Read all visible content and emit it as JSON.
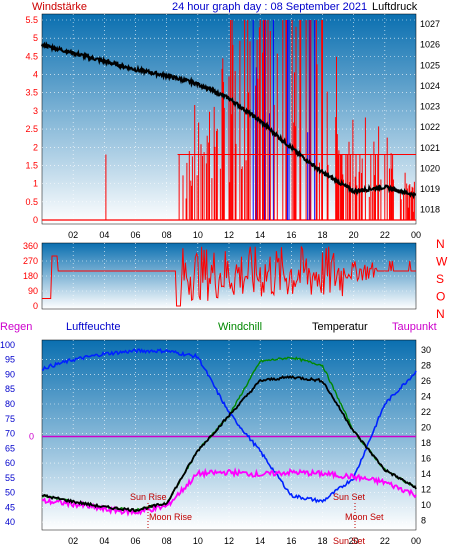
{
  "header": {
    "left_label": "Windstärke",
    "title": "24 hour graph day : 08 September 2021",
    "right_label": "Luftdruck"
  },
  "colors": {
    "plot_top": "#0a6fb0",
    "plot_bottom": "#ffffff",
    "wind": "#ff0000",
    "gust_blue": "#0000ff",
    "pressure": "#000000",
    "humidity": "#0022ff",
    "windchill": "#008800",
    "temperature": "#000000",
    "dewpoint": "#ff00ff",
    "rain_line": "#cc00cc",
    "annotation": "#c00000"
  },
  "panel1": {
    "wind_ticks": [
      "5.5",
      "5",
      "4.5",
      "4",
      "3.5",
      "3",
      "2.5",
      "2",
      "1.5",
      "1",
      "0.5",
      "0"
    ],
    "pressure_ticks": [
      "1027",
      "1026",
      "1025",
      "1024",
      "1023",
      "1022",
      "1021",
      "1020",
      "1019",
      "1018"
    ]
  },
  "panel2": {
    "dir_ticks": [
      "360",
      "270",
      "180",
      "90",
      "0"
    ],
    "compass": [
      "N",
      "W",
      "S",
      "O",
      "N"
    ]
  },
  "panel3": {
    "legend": {
      "rain": "Regen",
      "humidity": "Luftfeuchte",
      "windchill": "Windchill",
      "temperature": "Temperatur",
      "dewpoint": "Taupunkt"
    },
    "humidity_ticks": [
      "100",
      "95",
      "90",
      "85",
      "80",
      "75",
      "70",
      "65",
      "60",
      "55",
      "50",
      "45",
      "40"
    ],
    "rain_tick": "0",
    "temp_ticks": [
      "30",
      "28",
      "26",
      "24",
      "22",
      "20",
      "18",
      "16",
      "14",
      "12",
      "10",
      "8"
    ],
    "annotations": {
      "sun_rise": "Sun Rise",
      "moon_rise": "Moon Rise",
      "sun_set": "Sun Set",
      "moon_set": "Moon Set",
      "sun_set_bottom": "Sun Set"
    }
  },
  "x_ticks": [
    "02",
    "04",
    "06",
    "08",
    "10",
    "12",
    "14",
    "16",
    "18",
    "20",
    "22",
    "00"
  ],
  "chart_data": [
    {
      "type": "line",
      "description_series": [
        "Windstärke",
        "Luftdruck"
      ],
      "x": [
        "00",
        "02",
        "04",
        "06",
        "08",
        "10",
        "12",
        "14",
        "16",
        "18",
        "20",
        "22",
        "00"
      ],
      "series": [
        {
          "name": "Luftdruck",
          "unit": "hPa",
          "values": [
            1026.0,
            1025.6,
            1025.2,
            1024.8,
            1024.5,
            1024.1,
            1023.4,
            1022.3,
            1021.0,
            1019.8,
            1018.9,
            1019.1,
            1018.7
          ]
        },
        {
          "name": "Windstärke",
          "values": [
            0,
            0,
            0.3,
            0,
            0,
            1.8,
            2.5,
            3.5,
            4.5,
            3.0,
            1.8,
            1.2,
            0.5
          ]
        }
      ],
      "ylim_left": [
        0,
        5.5
      ],
      "ylim_right": [
        1017.5,
        1027.2
      ]
    },
    {
      "type": "line",
      "x": [
        "00",
        "02",
        "04",
        "06",
        "08",
        "10",
        "12",
        "14",
        "16",
        "18",
        "20",
        "22",
        "00"
      ],
      "series": [
        {
          "name": "Windrichtung",
          "unit": "deg",
          "values": [
            45,
            210,
            210,
            210,
            210,
            200,
            220,
            230,
            240,
            210,
            210,
            210,
            210
          ]
        }
      ],
      "ylim": [
        0,
        360
      ]
    },
    {
      "type": "line",
      "x": [
        "00",
        "02",
        "04",
        "06",
        "08",
        "10",
        "12",
        "14",
        "16",
        "18",
        "20",
        "22",
        "00"
      ],
      "series": [
        {
          "name": "Luftfeuchte",
          "unit": "%",
          "values": [
            92,
            95,
            97,
            98,
            98,
            96,
            77,
            64,
            49,
            47,
            55,
            80,
            91
          ]
        },
        {
          "name": "Temperatur",
          "unit": "°C",
          "values": [
            11.2,
            10.4,
            9.7,
            9.3,
            10.2,
            17.0,
            21.5,
            26.0,
            26.5,
            26.0,
            19.5,
            14.5,
            12.2
          ]
        },
        {
          "name": "Windchill",
          "unit": "°C",
          "values": [
            11.2,
            10.4,
            9.7,
            9.3,
            10.2,
            17.0,
            21.5,
            28.5,
            29.0,
            28.0,
            19.5,
            14.5,
            12.2
          ]
        },
        {
          "name": "Taupunkt",
          "unit": "°C",
          "values": [
            10.5,
            10.1,
            9.4,
            9.0,
            9.8,
            14.0,
            14.2,
            13.9,
            14.2,
            14.0,
            13.6,
            12.9,
            11.3
          ]
        },
        {
          "name": "Regen",
          "values": [
            0,
            0,
            0,
            0,
            0,
            0,
            0,
            0,
            0,
            0,
            0,
            0,
            0
          ]
        }
      ],
      "ylim_left": [
        38,
        101
      ],
      "ylim_right": [
        7,
        31
      ]
    }
  ]
}
